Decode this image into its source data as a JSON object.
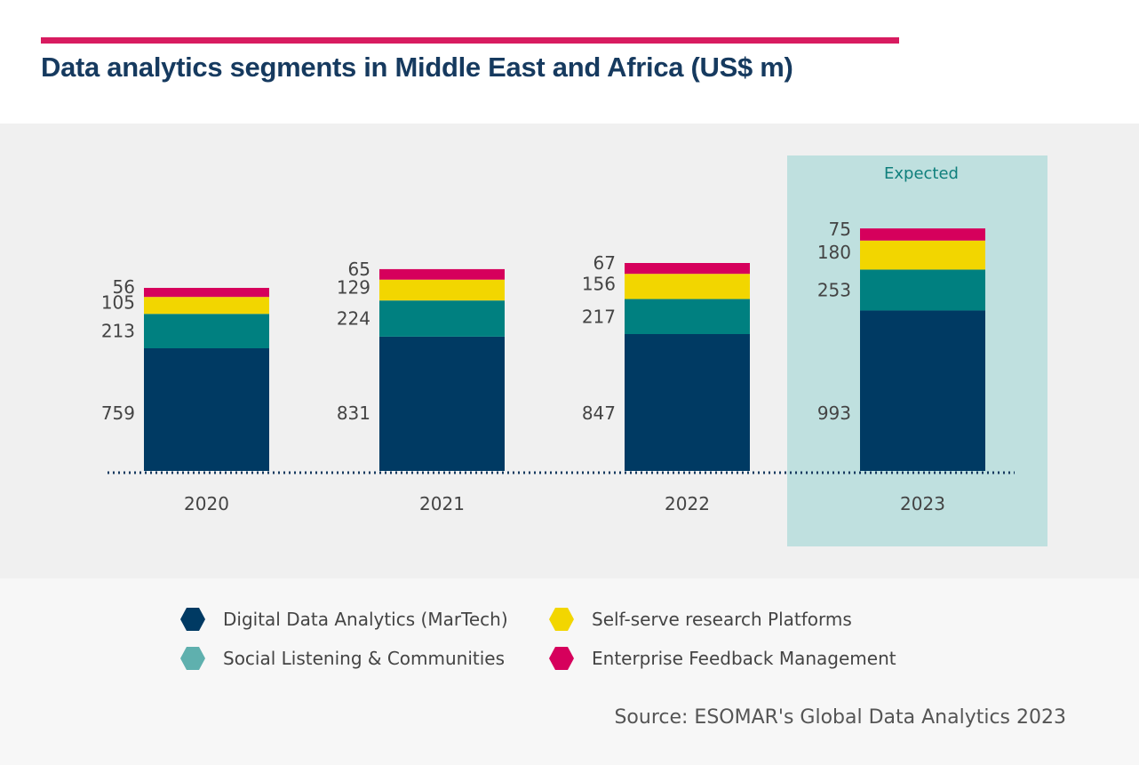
{
  "title": "Data analytics segments in Middle East and Africa (US$ m)",
  "source": "Source: ESOMAR's Global Data Analytics 2023",
  "colors": {
    "accent": "#d81b60",
    "title": "#163a5f",
    "expected_bg": "#bfe0df"
  },
  "chart_data": {
    "type": "bar",
    "stacked": true,
    "title": "Data analytics segments in Middle East and Africa (US$ m)",
    "categories": [
      "2020",
      "2021",
      "2022",
      "2023"
    ],
    "annotation": {
      "label": "Expected",
      "category": "2023"
    },
    "series": [
      {
        "name": "Digital Data Analytics (MarTech)",
        "color": "#003a63",
        "values": [
          759,
          831,
          847,
          993
        ]
      },
      {
        "name": "Social Listening & Communities",
        "color": "#008080",
        "values": [
          213,
          224,
          217,
          253
        ]
      },
      {
        "name": "Self-serve research Platforms",
        "color": "#f2d600",
        "values": [
          105,
          129,
          156,
          180
        ]
      },
      {
        "name": "Enterprise Feedback Management",
        "color": "#d6005c",
        "values": [
          56,
          65,
          67,
          75
        ]
      }
    ],
    "legend_colors": [
      "#003a63",
      "#5fb0ae",
      "#f2d600",
      "#d6005c"
    ],
    "legend_position": "bottom",
    "grid": false
  }
}
